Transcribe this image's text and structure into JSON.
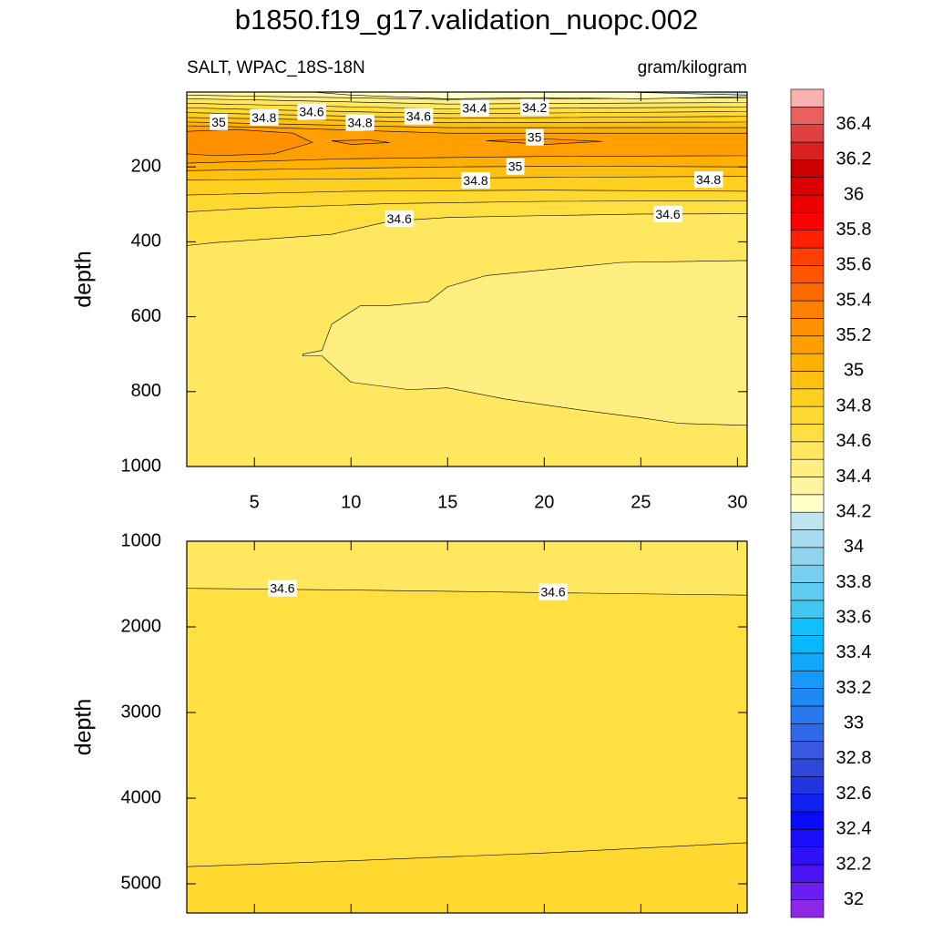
{
  "chart_data": {
    "type": "contour",
    "title": "b1850.f19_g17.validation_nuopc.002",
    "subtitle_left": "SALT, WPAC_18S-18N",
    "subtitle_right": "gram/kilogram",
    "xlim": [
      1.5,
      30.5
    ],
    "xticks": [
      5,
      10,
      15,
      20,
      25,
      30
    ],
    "panels": [
      {
        "ylabel": "depth",
        "ylim": [
          0,
          1000
        ],
        "yticks": [
          200,
          400,
          600,
          800,
          1000
        ],
        "xtick_labels": true,
        "background_level": 34.5,
        "regions": [
          {
            "level": 34.4,
            "points": [
              [
                7.5,
                700
              ],
              [
                8.5,
                690
              ],
              [
                9,
                620
              ],
              [
                10.5,
                570
              ],
              [
                12,
                570
              ],
              [
                14,
                560
              ],
              [
                15,
                520
              ],
              [
                17,
                490
              ],
              [
                21,
                470
              ],
              [
                24,
                455
              ],
              [
                30.5,
                450
              ],
              [
                30.5,
                890
              ],
              [
                27,
                885
              ],
              [
                25,
                870
              ],
              [
                22,
                850
              ],
              [
                18,
                820
              ],
              [
                15,
                790
              ],
              [
                13,
                795
              ],
              [
                10,
                775
              ],
              [
                8.5,
                705
              ],
              [
                7.5,
                705
              ]
            ]
          },
          {
            "level": 34.6,
            "points": [
              [
                1.5,
                0
              ],
              [
                30.5,
                0
              ],
              [
                30.5,
                325
              ],
              [
                25,
                326
              ],
              [
                20,
                330
              ],
              [
                15,
                335
              ],
              [
                12,
                345
              ],
              [
                9,
                380
              ],
              [
                5,
                395
              ],
              [
                3,
                402
              ],
              [
                1.5,
                410
              ]
            ]
          },
          {
            "level": 34.7,
            "points": [
              [
                1.5,
                0
              ],
              [
                30.5,
                0
              ],
              [
                30.5,
                290
              ],
              [
                20,
                292
              ],
              [
                12,
                298
              ],
              [
                5,
                310
              ],
              [
                1.5,
                320
              ]
            ]
          },
          {
            "level": 34.8,
            "points": [
              [
                1.5,
                0
              ],
              [
                30.5,
                0
              ],
              [
                30.5,
                265
              ],
              [
                20,
                262
              ],
              [
                10,
                265
              ],
              [
                1.5,
                275
              ]
            ]
          },
          {
            "level": 34.9,
            "points": [
              [
                1.5,
                0
              ],
              [
                30.5,
                0
              ],
              [
                30.5,
                225
              ],
              [
                20,
                228
              ],
              [
                10,
                232
              ],
              [
                1.5,
                235
              ]
            ]
          },
          {
            "level": 35.0,
            "points": [
              [
                1.5,
                0
              ],
              [
                30.5,
                0
              ],
              [
                30.5,
                200
              ],
              [
                22,
                198
              ],
              [
                15,
                200
              ],
              [
                8,
                205
              ],
              [
                1.5,
                210
              ]
            ]
          },
          {
            "level": 35.1,
            "points": [
              [
                1.5,
                0
              ],
              [
                30.5,
                0
              ],
              [
                30.5,
                170
              ],
              [
                20,
                172
              ],
              [
                10,
                178
              ],
              [
                5,
                185
              ],
              [
                1.5,
                190
              ]
            ]
          },
          {
            "level": 35.2,
            "points": [
              [
                1.5,
                105
              ],
              [
                4,
                100
              ],
              [
                7,
                110
              ],
              [
                8,
                135
              ],
              [
                6,
                165
              ],
              [
                3,
                170
              ],
              [
                1.5,
                165
              ]
            ]
          },
          {
            "level": 35.2,
            "points": [
              [
                9,
                130
              ],
              [
                11,
                128
              ],
              [
                12,
                135
              ],
              [
                10,
                140
              ]
            ]
          },
          {
            "level": 35.2,
            "points": [
              [
                17,
                130
              ],
              [
                20,
                125
              ],
              [
                23,
                132
              ],
              [
                20,
                140
              ]
            ]
          },
          {
            "level": 35.0,
            "points": [
              [
                1.5,
                0
              ],
              [
                30.5,
                0
              ],
              [
                30.5,
                110
              ],
              [
                15,
                110
              ],
              [
                6,
                95
              ],
              [
                1.5,
                90
              ]
            ]
          },
          {
            "level": 34.9,
            "points": [
              [
                1.5,
                0
              ],
              [
                30.5,
                0
              ],
              [
                30.5,
                95
              ],
              [
                15,
                95
              ],
              [
                6,
                85
              ],
              [
                1.5,
                80
              ]
            ]
          },
          {
            "level": 34.8,
            "points": [
              [
                1.5,
                0
              ],
              [
                30.5,
                0
              ],
              [
                30.5,
                80
              ],
              [
                15,
                82
              ],
              [
                6,
                72
              ],
              [
                1.5,
                68
              ]
            ]
          },
          {
            "level": 34.7,
            "points": [
              [
                1.5,
                0
              ],
              [
                30.5,
                0
              ],
              [
                30.5,
                65
              ],
              [
                15,
                70
              ],
              [
                6,
                60
              ],
              [
                1.5,
                55
              ]
            ]
          },
          {
            "level": 34.6,
            "points": [
              [
                1.5,
                0
              ],
              [
                30.5,
                0
              ],
              [
                30.5,
                52
              ],
              [
                15,
                58
              ],
              [
                6,
                48
              ],
              [
                1.5,
                42
              ]
            ]
          },
          {
            "level": 34.5,
            "points": [
              [
                1.5,
                0
              ],
              [
                30.5,
                0
              ],
              [
                30.5,
                40
              ],
              [
                15,
                45
              ],
              [
                6,
                35
              ],
              [
                1.5,
                30
              ]
            ]
          },
          {
            "level": 34.4,
            "points": [
              [
                1.5,
                0
              ],
              [
                30.5,
                0
              ],
              [
                30.5,
                28
              ],
              [
                15,
                32
              ],
              [
                6,
                22
              ],
              [
                1.5,
                18
              ]
            ]
          },
          {
            "level": 34.3,
            "points": [
              [
                1.5,
                0
              ],
              [
                30.5,
                0
              ],
              [
                30.5,
                15
              ],
              [
                15,
                20
              ],
              [
                6,
                12
              ],
              [
                1.5,
                8
              ]
            ]
          },
          {
            "level": 34.2,
            "points": [
              [
                8,
                0
              ],
              [
                30.5,
                0
              ],
              [
                30.5,
                12
              ],
              [
                25,
                18
              ],
              [
                20,
                15
              ],
              [
                15,
                18
              ],
              [
                10,
                8
              ]
            ]
          },
          {
            "level": 34.1,
            "points": [
              [
                24,
                0
              ],
              [
                30.5,
                0
              ],
              [
                30.5,
                8
              ],
              [
                28,
                5
              ]
            ]
          }
        ],
        "contour_labels": [
          {
            "value": 35,
            "x": 3.15,
            "y": 83
          },
          {
            "value": 34.8,
            "x": 5.5,
            "y": 71
          },
          {
            "value": 34.6,
            "x": 7.96,
            "y": 56
          },
          {
            "value": 34.8,
            "x": 10.46,
            "y": 85
          },
          {
            "value": 34.6,
            "x": 13.5,
            "y": 68
          },
          {
            "value": 34.4,
            "x": 16.4,
            "y": 46
          },
          {
            "value": 34.2,
            "x": 19.5,
            "y": 44
          },
          {
            "value": 35,
            "x": 19.5,
            "y": 124
          },
          {
            "value": 35,
            "x": 18.5,
            "y": 202
          },
          {
            "value": 34.8,
            "x": 16.45,
            "y": 239
          },
          {
            "value": 34.8,
            "x": 28.5,
            "y": 237
          },
          {
            "value": 34.6,
            "x": 12.5,
            "y": 341
          },
          {
            "value": 34.6,
            "x": 26.4,
            "y": 329
          }
        ]
      },
      {
        "ylabel": "depth",
        "ylim": [
          1000,
          5340
        ],
        "yticks": [
          1000,
          2000,
          3000,
          4000,
          5000
        ],
        "xtick_labels": false,
        "background_level": 34.6,
        "regions": [
          {
            "level": 34.5,
            "points": [
              [
                1.5,
                1000
              ],
              [
                30.5,
                1000
              ],
              [
                30.5,
                1630
              ],
              [
                20,
                1600
              ],
              [
                10,
                1570
              ],
              [
                1.5,
                1550
              ]
            ]
          },
          {
            "level": 34.7,
            "points": [
              [
                1.5,
                4800
              ],
              [
                10,
                4730
              ],
              [
                20,
                4640
              ],
              [
                30.5,
                4520
              ],
              [
                30.5,
                5340
              ],
              [
                1.5,
                5340
              ]
            ]
          }
        ],
        "contour_labels": [
          {
            "value": 34.6,
            "x": 6.45,
            "y": 1564
          },
          {
            "value": 34.6,
            "x": 20.46,
            "y": 1606
          }
        ]
      }
    ],
    "colorbar": {
      "levels": [
        32,
        32.1,
        32.2,
        32.3,
        32.4,
        32.5,
        32.6,
        32.7,
        32.8,
        32.9,
        33,
        33.1,
        33.2,
        33.3,
        33.4,
        33.5,
        33.6,
        33.7,
        33.8,
        33.9,
        34,
        34.1,
        34.2,
        34.3,
        34.4,
        34.5,
        34.6,
        34.7,
        34.8,
        34.9,
        35,
        35.1,
        35.2,
        35.3,
        35.4,
        35.5,
        35.6,
        35.7,
        35.8,
        35.9,
        36,
        36.1,
        36.2,
        36.3,
        36.4,
        36.5
      ],
      "colors": [
        "#8c28e6",
        "#6a1ef0",
        "#4b14f5",
        "#3010f8",
        "#1a0dfb",
        "#0a0afc",
        "#1020f0",
        "#2035e0",
        "#3048d8",
        "#3858e0",
        "#3068ea",
        "#2878f0",
        "#2088f5",
        "#1898f8",
        "#10a8fb",
        "#08b8fd",
        "#10c0f8",
        "#40c8f0",
        "#60cdf0",
        "#78d0f0",
        "#90d4f0",
        "#a8dcf0",
        "#c0e4f0",
        "#ffffc8",
        "#fff5a0",
        "#ffef80",
        "#ffe860",
        "#ffe040",
        "#ffd830",
        "#ffd020",
        "#ffc010",
        "#ffb000",
        "#ffa000",
        "#ff9000",
        "#ff8000",
        "#ff6a00",
        "#ff5500",
        "#ff4000",
        "#ff2000",
        "#ff0000",
        "#ee0000",
        "#dd0000",
        "#cc0000",
        "#d82020",
        "#e04040",
        "#e86060",
        "#f8b0b0"
      ],
      "ticks": [
        32,
        32.2,
        32.4,
        32.6,
        32.8,
        33,
        33.2,
        33.4,
        33.6,
        33.8,
        34,
        34.2,
        34.4,
        34.6,
        34.8,
        35,
        35.2,
        35.4,
        35.6,
        35.8,
        36,
        36.2,
        36.4
      ]
    }
  }
}
